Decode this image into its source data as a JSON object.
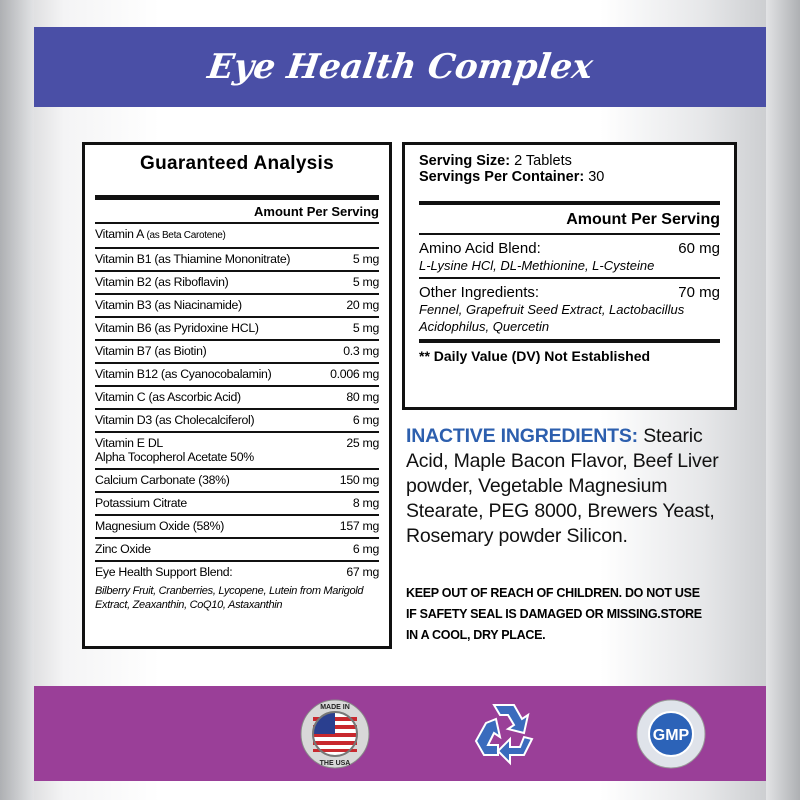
{
  "title": "Eye Health Complex",
  "guaranteed": {
    "heading": "Guaranteed Analysis",
    "amount_header": "Amount Per Serving",
    "rows": [
      {
        "name": "Vitamin A",
        "note": "(as Beta Carotene)",
        "amount": ""
      },
      {
        "name": "Vitamin B1 (as Thiamine Mononitrate)",
        "amount": "5 mg"
      },
      {
        "name": "Vitamin B2 (as Riboflavin)",
        "amount": "5 mg"
      },
      {
        "name": "Vitamin B3 (as Niacinamide)",
        "amount": "20 mg"
      },
      {
        "name": "Vitamin B6 (as Pyridoxine HCL)",
        "amount": "5 mg"
      },
      {
        "name": "Vitamin B7 (as Biotin)",
        "amount": "0.3 mg"
      },
      {
        "name": "Vitamin B12 (as Cyanocobalamin)",
        "amount": "0.006 mg"
      },
      {
        "name": "Vitamin C (as Ascorbic Acid)",
        "amount": "80 mg"
      },
      {
        "name": "Vitamin D3 (as Cholecalciferol)",
        "amount": "6 mg"
      },
      {
        "name": "Vitamin E DL",
        "name2": "Alpha Tocopherol Acetate 50%",
        "amount": "25 mg"
      },
      {
        "name": "Calcium Carbonate (38%)",
        "amount": "150 mg"
      },
      {
        "name": "Potassium Citrate",
        "amount": "8 mg"
      },
      {
        "name": "Magnesium Oxide (58%)",
        "amount": "157 mg"
      },
      {
        "name": "Zinc Oxide",
        "amount": "6 mg"
      },
      {
        "name": "Eye Health Support Blend:",
        "amount": "67 mg"
      }
    ],
    "blend_detail": "Bilberry Fruit, Cranberries, Lycopene, Lutein from Marigold Extract, Zeaxanthin, CoQ10, Astaxanthin"
  },
  "supplement": {
    "serving_size_label": "Serving Size:",
    "serving_size": "2 Tablets",
    "servings_label": "Servings Per Container:",
    "servings": "30",
    "amount_header": "Amount Per Serving",
    "amino_label": "Amino Acid Blend:",
    "amino_amount": "60 mg",
    "amino_detail": "L-Lysine HCl, DL-Methionine, L-Cysteine",
    "other_label": "Other Ingredients:",
    "other_amount": "70 mg",
    "other_detail": "Fennel, Grapefruit Seed Extract, Lactobacillus Acidophilus, Quercetin",
    "dv_note": "** Daily Value (DV) Not Established"
  },
  "inactive": {
    "label": "INACTIVE INGREDIENTS:",
    "text": " Stearic Acid, Maple Bacon Flavor, Beef Liver powder, Vegetable Magnesium Stearate, PEG 8000, Brewers Yeast, Rosemary powder Silicon."
  },
  "warning": [
    "KEEP OUT OF REACH OF CHILDREN. DO NOT USE",
    "IF SAFETY SEAL IS DAMAGED OR MISSING.STORE",
    "IN A COOL, DRY PLACE."
  ],
  "badges": {
    "usa_top": "MADE IN",
    "usa_bottom": "THE USA",
    "gmp": "GMP",
    "recycle_icon": "recycle-icon"
  },
  "colors": {
    "top_band": "#4a4fa6",
    "bottom_band": "#9a3f98",
    "inactive_label": "#2d5fae"
  }
}
